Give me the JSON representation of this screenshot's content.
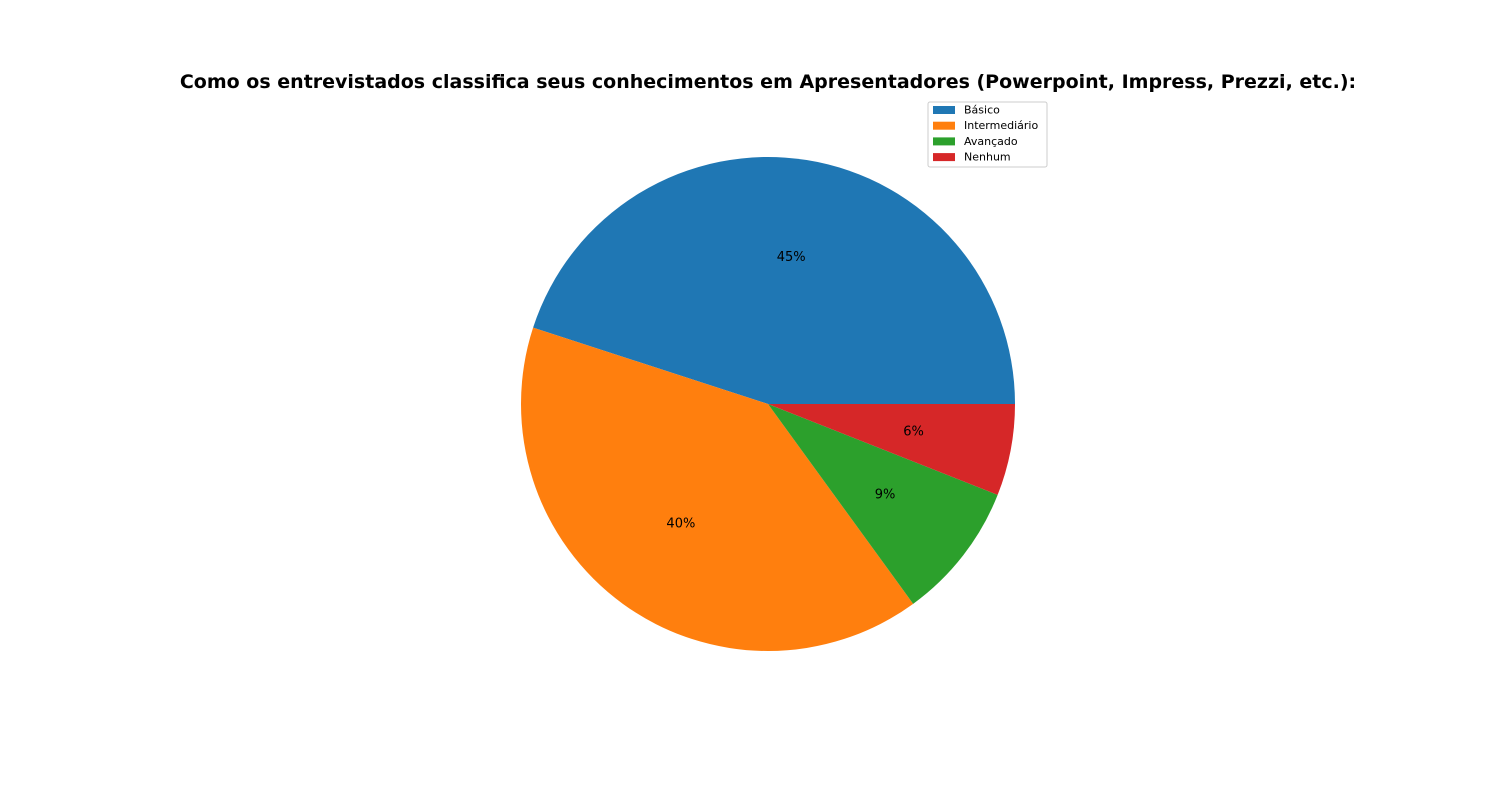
{
  "chart_data": {
    "type": "pie",
    "title": "Como os entrevistados classifica seus conhecimentos em Apresentadores (Powerpoint, Impress, Prezzi, etc.):",
    "slices": [
      {
        "label": "Básico",
        "value": 45,
        "pct_label": "45%",
        "color": "#1f77b4"
      },
      {
        "label": "Intermediário",
        "value": 40,
        "pct_label": "40%",
        "color": "#ff7f0e"
      },
      {
        "label": "Avançado",
        "value": 9,
        "pct_label": "9%",
        "color": "#2ca02c"
      },
      {
        "label": "Nenhum",
        "value": 6,
        "pct_label": "6%",
        "color": "#d62728"
      }
    ],
    "start_angle": "3 o'clock",
    "direction": "counterclockwise",
    "legend_position": "top-right"
  }
}
